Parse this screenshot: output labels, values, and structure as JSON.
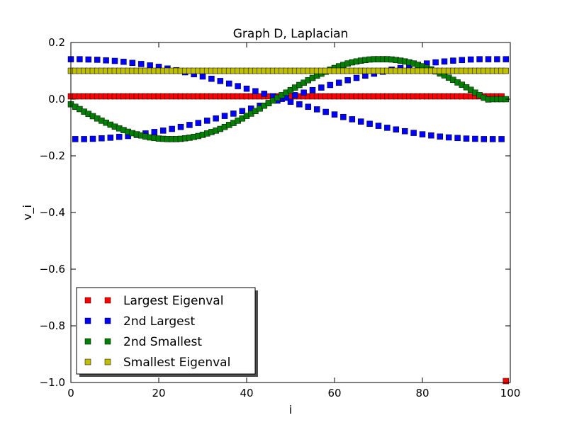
{
  "chart_data": {
    "type": "scatter",
    "title": "Graph D, Laplacian",
    "xlabel": "i",
    "ylabel": "v_i",
    "xlim": [
      0,
      100
    ],
    "ylim": [
      -1.0,
      0.2
    ],
    "x_ticks": [
      0,
      20,
      40,
      60,
      80,
      100
    ],
    "x_tick_labels": [
      "0",
      "20",
      "40",
      "60",
      "80",
      "100"
    ],
    "y_ticks": [
      0.2,
      0.0,
      -0.2,
      -0.4,
      -0.6,
      -0.8,
      -1.0
    ],
    "y_tick_labels": [
      "0.2",
      "0.0",
      "−0.2",
      "−0.4",
      "−0.6",
      "−0.8",
      "−1.0"
    ],
    "grid": false,
    "legend_position": "lower-left",
    "marker": "square",
    "series": [
      {
        "name": "Largest Eigenval",
        "color": "#ff0000",
        "x": [
          0,
          1,
          2,
          3,
          4,
          5,
          6,
          7,
          8,
          9,
          10,
          11,
          12,
          13,
          14,
          15,
          16,
          17,
          18,
          19,
          20,
          21,
          22,
          23,
          24,
          25,
          26,
          27,
          28,
          29,
          30,
          31,
          32,
          33,
          34,
          35,
          36,
          37,
          38,
          39,
          40,
          41,
          42,
          43,
          44,
          45,
          46,
          47,
          48,
          49,
          50,
          51,
          52,
          53,
          54,
          55,
          56,
          57,
          58,
          59,
          60,
          61,
          62,
          63,
          64,
          65,
          66,
          67,
          68,
          69,
          70,
          71,
          72,
          73,
          74,
          75,
          76,
          77,
          78,
          79,
          80,
          81,
          82,
          83,
          84,
          85,
          86,
          87,
          88,
          89,
          90,
          91,
          92,
          93,
          94,
          95,
          96,
          97,
          98,
          99
        ],
        "y": [
          0.01,
          0.01,
          0.01,
          0.01,
          0.01,
          0.01,
          0.01,
          0.01,
          0.01,
          0.01,
          0.01,
          0.01,
          0.01,
          0.01,
          0.01,
          0.01,
          0.01,
          0.01,
          0.01,
          0.01,
          0.01,
          0.01,
          0.01,
          0.01,
          0.01,
          0.01,
          0.01,
          0.01,
          0.01,
          0.01,
          0.01,
          0.01,
          0.01,
          0.01,
          0.01,
          0.01,
          0.01,
          0.01,
          0.01,
          0.01,
          0.01,
          0.01,
          0.01,
          0.01,
          0.01,
          0.01,
          0.01,
          0.01,
          0.01,
          0.01,
          0.01,
          0.01,
          0.01,
          0.01,
          0.01,
          0.01,
          0.01,
          0.01,
          0.01,
          0.01,
          0.01,
          0.01,
          0.01,
          0.01,
          0.01,
          0.01,
          0.01,
          0.01,
          0.01,
          0.01,
          0.01,
          0.01,
          0.01,
          0.01,
          0.01,
          0.01,
          0.01,
          0.01,
          0.01,
          0.01,
          0.01,
          0.01,
          0.01,
          0.01,
          0.01,
          0.01,
          0.01,
          0.01,
          0.01,
          0.01,
          0.01,
          0.01,
          0.01,
          0.01,
          0.01,
          0.01,
          0.01,
          0.01,
          0.01,
          -0.995
        ]
      },
      {
        "name": "2nd Largest",
        "color": "#0000ff",
        "x": [
          0,
          2,
          4,
          6,
          8,
          10,
          12,
          14,
          16,
          18,
          20,
          22,
          24,
          26,
          28,
          30,
          32,
          34,
          36,
          38,
          40,
          42,
          44,
          46,
          48,
          50,
          52,
          54,
          56,
          58,
          60,
          62,
          64,
          66,
          68,
          70,
          72,
          74,
          76,
          78,
          80,
          82,
          84,
          86,
          88,
          90,
          92,
          94,
          96,
          98,
          1,
          3,
          5,
          7,
          9,
          11,
          13,
          15,
          17,
          19,
          21,
          23,
          25,
          27,
          29,
          31,
          33,
          35,
          37,
          39,
          41,
          43,
          45,
          47,
          49,
          51,
          53,
          55,
          57,
          59,
          61,
          63,
          65,
          67,
          69,
          71,
          73,
          75,
          77,
          79,
          81,
          83,
          85,
          87,
          89,
          91,
          93,
          95,
          97,
          99
        ],
        "y": [
          0.141,
          0.141,
          0.14,
          0.139,
          0.137,
          0.135,
          0.132,
          0.128,
          0.124,
          0.119,
          0.114,
          0.108,
          0.102,
          0.095,
          0.088,
          0.08,
          0.072,
          0.064,
          0.055,
          0.046,
          0.037,
          0.028,
          0.019,
          0.01,
          0.001,
          -0.009,
          -0.018,
          -0.027,
          -0.036,
          -0.045,
          -0.054,
          -0.063,
          -0.071,
          -0.079,
          -0.087,
          -0.094,
          -0.101,
          -0.107,
          -0.113,
          -0.119,
          -0.124,
          -0.128,
          -0.132,
          -0.135,
          -0.137,
          -0.139,
          -0.14,
          -0.141,
          -0.141,
          -0.141,
          -0.141,
          -0.141,
          -0.14,
          -0.138,
          -0.136,
          -0.133,
          -0.13,
          -0.126,
          -0.121,
          -0.116,
          -0.111,
          -0.105,
          -0.098,
          -0.091,
          -0.084,
          -0.076,
          -0.068,
          -0.059,
          -0.051,
          -0.042,
          -0.033,
          -0.023,
          -0.014,
          -0.005,
          0.005,
          0.014,
          0.023,
          0.032,
          0.041,
          0.05,
          0.058,
          0.067,
          0.075,
          0.083,
          0.09,
          0.097,
          0.104,
          0.11,
          0.116,
          0.121,
          0.126,
          0.13,
          0.133,
          0.136,
          0.138,
          0.14,
          0.141,
          0.141,
          0.141,
          0.141
        ]
      },
      {
        "name": "2nd Smallest",
        "color": "#008000",
        "x": [
          0,
          1,
          2,
          3,
          4,
          5,
          6,
          7,
          8,
          9,
          10,
          11,
          12,
          13,
          14,
          15,
          16,
          17,
          18,
          19,
          20,
          21,
          22,
          23,
          24,
          25,
          26,
          27,
          28,
          29,
          30,
          31,
          32,
          33,
          34,
          35,
          36,
          37,
          38,
          39,
          40,
          41,
          42,
          43,
          44,
          45,
          46,
          47,
          48,
          49,
          50,
          51,
          52,
          53,
          54,
          55,
          56,
          57,
          58,
          59,
          60,
          61,
          62,
          63,
          64,
          65,
          66,
          67,
          68,
          69,
          70,
          71,
          72,
          73,
          74,
          75,
          76,
          77,
          78,
          79,
          80,
          81,
          82,
          83,
          84,
          85,
          86,
          87,
          88,
          89,
          90,
          91,
          92,
          93,
          94,
          95,
          96,
          97,
          98,
          99
        ],
        "y": [
          -0.018,
          -0.027,
          -0.035,
          -0.044,
          -0.052,
          -0.06,
          -0.068,
          -0.076,
          -0.083,
          -0.09,
          -0.097,
          -0.103,
          -0.109,
          -0.115,
          -0.12,
          -0.124,
          -0.128,
          -0.132,
          -0.135,
          -0.137,
          -0.139,
          -0.14,
          -0.141,
          -0.141,
          -0.141,
          -0.14,
          -0.138,
          -0.136,
          -0.133,
          -0.13,
          -0.126,
          -0.121,
          -0.116,
          -0.111,
          -0.105,
          -0.098,
          -0.091,
          -0.084,
          -0.076,
          -0.068,
          -0.059,
          -0.051,
          -0.042,
          -0.033,
          -0.023,
          -0.014,
          -0.005,
          0.005,
          0.014,
          0.023,
          0.032,
          0.041,
          0.05,
          0.058,
          0.067,
          0.075,
          0.083,
          0.09,
          0.097,
          0.104,
          0.11,
          0.116,
          0.121,
          0.126,
          0.13,
          0.133,
          0.136,
          0.138,
          0.14,
          0.141,
          0.141,
          0.141,
          0.141,
          0.14,
          0.138,
          0.136,
          0.133,
          0.13,
          0.126,
          0.121,
          0.116,
          0.111,
          0.105,
          0.098,
          0.091,
          0.084,
          0.076,
          0.068,
          0.059,
          0.051,
          0.042,
          0.033,
          0.023,
          0.014,
          0.005,
          -0.001,
          0.0,
          0.0,
          0.0,
          0.0
        ]
      },
      {
        "name": "Smallest Eigenval",
        "color": "#bfbf00",
        "x": [
          0,
          1,
          2,
          3,
          4,
          5,
          6,
          7,
          8,
          9,
          10,
          11,
          12,
          13,
          14,
          15,
          16,
          17,
          18,
          19,
          20,
          21,
          22,
          23,
          24,
          25,
          26,
          27,
          28,
          29,
          30,
          31,
          32,
          33,
          34,
          35,
          36,
          37,
          38,
          39,
          40,
          41,
          42,
          43,
          44,
          45,
          46,
          47,
          48,
          49,
          50,
          51,
          52,
          53,
          54,
          55,
          56,
          57,
          58,
          59,
          60,
          61,
          62,
          63,
          64,
          65,
          66,
          67,
          68,
          69,
          70,
          71,
          72,
          73,
          74,
          75,
          76,
          77,
          78,
          79,
          80,
          81,
          82,
          83,
          84,
          85,
          86,
          87,
          88,
          89,
          90,
          91,
          92,
          93,
          94,
          95,
          96,
          97,
          98,
          99
        ],
        "y": [
          0.1,
          0.1,
          0.1,
          0.1,
          0.1,
          0.1,
          0.1,
          0.1,
          0.1,
          0.1,
          0.1,
          0.1,
          0.1,
          0.1,
          0.1,
          0.1,
          0.1,
          0.1,
          0.1,
          0.1,
          0.1,
          0.1,
          0.1,
          0.1,
          0.1,
          0.1,
          0.1,
          0.1,
          0.1,
          0.1,
          0.1,
          0.1,
          0.1,
          0.1,
          0.1,
          0.1,
          0.1,
          0.1,
          0.1,
          0.1,
          0.1,
          0.1,
          0.1,
          0.1,
          0.1,
          0.1,
          0.1,
          0.1,
          0.1,
          0.1,
          0.1,
          0.1,
          0.1,
          0.1,
          0.1,
          0.1,
          0.1,
          0.1,
          0.1,
          0.1,
          0.1,
          0.1,
          0.1,
          0.1,
          0.1,
          0.1,
          0.1,
          0.1,
          0.1,
          0.1,
          0.1,
          0.1,
          0.1,
          0.1,
          0.1,
          0.1,
          0.1,
          0.1,
          0.1,
          0.1,
          0.1,
          0.1,
          0.1,
          0.1,
          0.1,
          0.1,
          0.1,
          0.1,
          0.1,
          0.1,
          0.1,
          0.1,
          0.1,
          0.1,
          0.1,
          0.1,
          0.1,
          0.1,
          0.1,
          0.1
        ]
      }
    ]
  }
}
